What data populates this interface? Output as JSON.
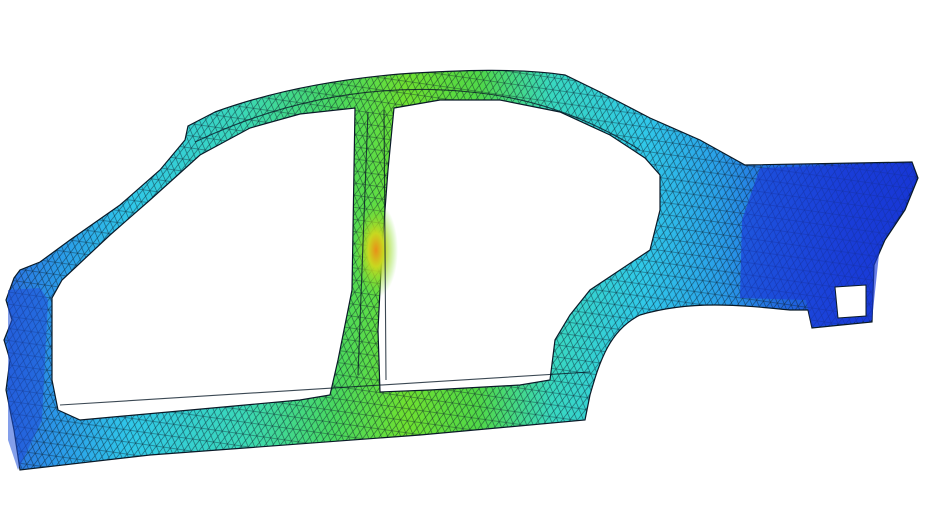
{
  "scene": {
    "subject": "car-body-side-panel-fea-mesh",
    "colors": {
      "background": "#ffffff",
      "mesh_line": "#0a1a28",
      "stress_high": "#e8a020",
      "stress_mid_high": "#c8e020",
      "stress_mid": "#50d020",
      "stress_mid_low": "#30d8c8",
      "stress_low": "#2a88e0",
      "stress_min": "#1030d8"
    }
  }
}
